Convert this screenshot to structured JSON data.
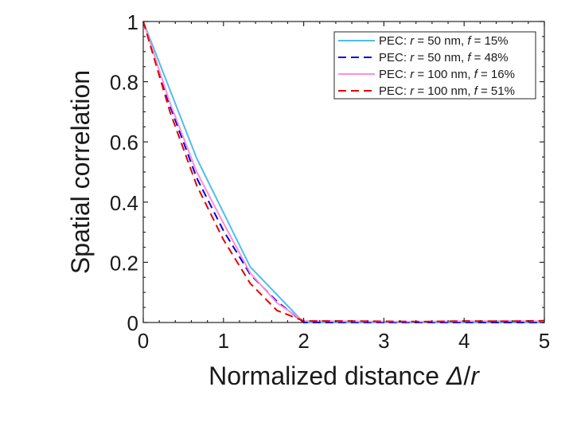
{
  "chart_data": {
    "type": "line",
    "title": "",
    "xlabel": "Normalized distance Δ/r",
    "xlabel_parts": {
      "prefix": "Normalized distance ",
      "var1": "Δ",
      "sep": "/",
      "var2": "r"
    },
    "ylabel": "Spatial correlation",
    "xlim": [
      0,
      5
    ],
    "ylim": [
      0,
      1
    ],
    "xticks": [
      0,
      1,
      2,
      3,
      4,
      5
    ],
    "xtick_labels": [
      "0",
      "1",
      "2",
      "3",
      "4",
      "5"
    ],
    "yticks": [
      0,
      0.2,
      0.4,
      0.6,
      0.8,
      1
    ],
    "ytick_labels": [
      "0",
      "0.2",
      "0.4",
      "0.6",
      "0.8",
      "1"
    ],
    "grid": false,
    "legend_position": "top-right",
    "series": [
      {
        "name": "PEC: r = 50 nm, f = 15%",
        "legend": {
          "prefix": "PEC: ",
          "var1": "r",
          "mid": " = 50 nm, ",
          "var2": "f",
          "suffix": " = 15%"
        },
        "color": "#4dbeee",
        "dash": "solid",
        "x": [
          0,
          0.667,
          1.333,
          2.0,
          2.667,
          3.333,
          4.0,
          4.667,
          5.0
        ],
        "y": [
          1.0,
          0.545,
          0.185,
          0.0,
          0.0,
          0.0,
          0.0,
          0.0,
          0.0
        ]
      },
      {
        "name": "PEC: r = 50 nm, f = 48%",
        "legend": {
          "prefix": "PEC: ",
          "var1": "r",
          "mid": " = 50 nm, ",
          "var2": "f",
          "suffix": " = 48%"
        },
        "color": "#0000e6",
        "dash": "dashed",
        "x": [
          0,
          0.333,
          0.667,
          1.0,
          1.333,
          1.667,
          2.0,
          2.667,
          3.333,
          4.0,
          4.667,
          5.0
        ],
        "y": [
          1.0,
          0.72,
          0.48,
          0.305,
          0.16,
          0.07,
          0.0,
          0.0,
          0.0,
          0.0,
          0.0,
          0.0
        ]
      },
      {
        "name": "PEC: r = 100 nm, f = 16%",
        "legend": {
          "prefix": "PEC: ",
          "var1": "r",
          "mid": " = 100 nm, ",
          "var2": "f",
          "suffix": " = 16%"
        },
        "color": "#ff8fd0",
        "dash": "solid",
        "x": [
          0,
          0.333,
          0.667,
          1.0,
          1.333,
          1.667,
          2.0,
          2.5,
          3.0,
          3.5,
          4.0,
          4.5,
          5.0
        ],
        "y": [
          1.0,
          0.73,
          0.5,
          0.33,
          0.165,
          0.065,
          0.005,
          0.004,
          0.003,
          0.003,
          0.004,
          0.005,
          0.004
        ]
      },
      {
        "name": "PEC: r = 100 nm, f = 51%",
        "legend": {
          "prefix": "PEC: ",
          "var1": "r",
          "mid": " = 100 nm, ",
          "var2": "f",
          "suffix": " = 51%"
        },
        "color": "#e60000",
        "dash": "dashed",
        "x": [
          0,
          0.333,
          0.667,
          1.0,
          1.333,
          1.667,
          2.0,
          2.5,
          3.0,
          3.5,
          4.0,
          4.5,
          5.0
        ],
        "y": [
          1.0,
          0.7,
          0.455,
          0.275,
          0.13,
          0.04,
          0.005,
          0.005,
          0.004,
          0.003,
          0.005,
          0.004,
          0.006
        ]
      }
    ]
  }
}
